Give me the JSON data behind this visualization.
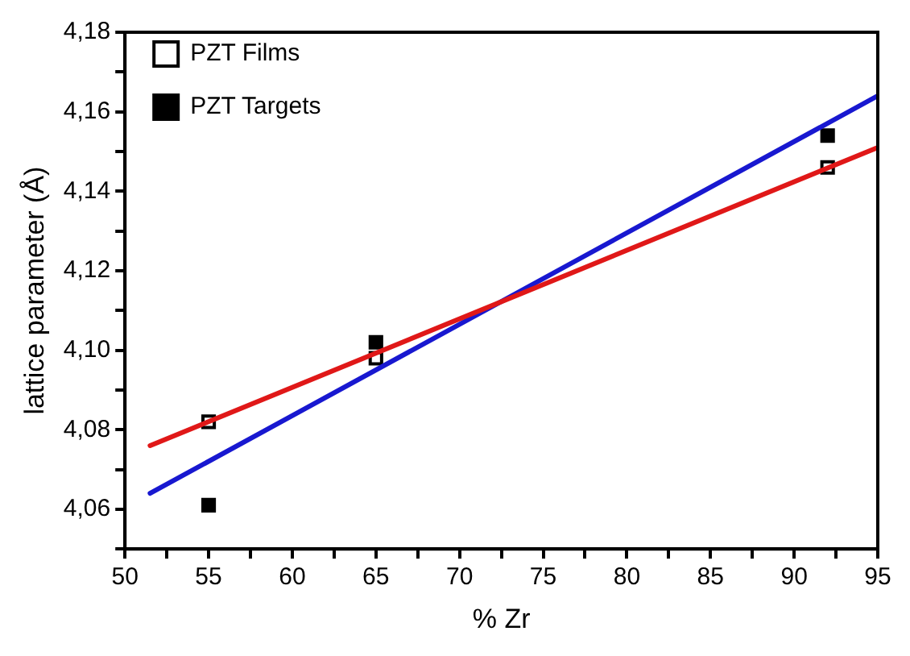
{
  "chart_data": {
    "type": "scatter",
    "xlabel": "% Zr",
    "ylabel": "lattice parameter (Å)",
    "xlim": [
      50,
      95
    ],
    "ylim": [
      4.05,
      4.18
    ],
    "xticks": [
      50,
      {
        "value": 52.5,
        "label": null
      },
      55,
      {
        "value": 57.5,
        "label": null
      },
      60,
      {
        "value": 62.5,
        "label": null
      },
      65,
      {
        "value": 67.5,
        "label": null
      },
      70,
      {
        "value": 72.5,
        "label": null
      },
      75,
      {
        "value": 77.5,
        "label": null
      },
      80,
      {
        "value": 82.5,
        "label": null
      },
      85,
      {
        "value": 87.5,
        "label": null
      },
      90,
      {
        "value": 92.5,
        "label": null
      },
      95
    ],
    "yticks": [
      {
        "value": 4.05,
        "label": null
      },
      {
        "value": 4.06,
        "label": "4,06"
      },
      {
        "value": 4.07,
        "label": null
      },
      {
        "value": 4.08,
        "label": "4,08"
      },
      {
        "value": 4.09,
        "label": null
      },
      {
        "value": 4.1,
        "label": "4,10"
      },
      {
        "value": 4.11,
        "label": null
      },
      {
        "value": 4.12,
        "label": "4,12"
      },
      {
        "value": 4.13,
        "label": null
      },
      {
        "value": 4.14,
        "label": "4,14"
      },
      {
        "value": 4.15,
        "label": null
      },
      {
        "value": 4.16,
        "label": "4,16"
      },
      {
        "value": 4.17,
        "label": null
      },
      {
        "value": 4.18,
        "label": "4,18"
      }
    ],
    "grid": false,
    "legend": "top left",
    "series": [
      {
        "type": "line",
        "marker": "none",
        "color": "#e01818",
        "x": [
          51.5,
          95
        ],
        "values": [
          4.076,
          4.151
        ]
      },
      {
        "type": "line",
        "marker": "none",
        "color": "#1818d0",
        "x": [
          51.5,
          95
        ],
        "values": [
          4.064,
          4.164
        ]
      },
      {
        "name": "PZT Films",
        "marker": "square",
        "color": "#ffffff",
        "x": [
          55,
          65,
          92
        ],
        "values": [
          4.082,
          4.098,
          4.146
        ]
      },
      {
        "name": "PZT Targets",
        "marker": "square",
        "color": "#000000",
        "x": [
          55,
          65,
          92
        ],
        "values": [
          4.061,
          4.102,
          4.154
        ]
      }
    ]
  }
}
